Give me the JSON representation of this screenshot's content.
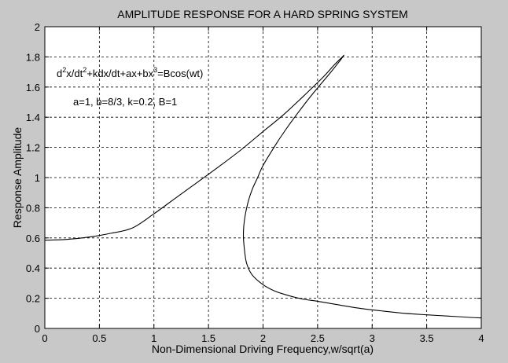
{
  "chart_data": {
    "type": "line",
    "title": "AMPLITUDE RESPONSE FOR A HARD SPRING SYSTEM",
    "xlabel": "Non-Dimensional Driving Frequency,w/sqrt(a)",
    "ylabel": "Response Amplitude",
    "xlim": [
      0,
      4
    ],
    "ylim": [
      0,
      2
    ],
    "xticks": [
      0,
      0.5,
      1,
      1.5,
      2,
      2.5,
      3,
      3.5,
      4
    ],
    "yticks": [
      0,
      0.2,
      0.4,
      0.6,
      0.8,
      1,
      1.2,
      1.4,
      1.6,
      1.8,
      2
    ],
    "xtick_labels": [
      "0",
      "0.5",
      "1",
      "1.5",
      "2",
      "2.5",
      "3",
      "3.5",
      "4"
    ],
    "ytick_labels": [
      "0",
      "0.2",
      "0.4",
      "0.6",
      "0.8",
      "1",
      "1.2",
      "1.4",
      "1.6",
      "1.8",
      "2"
    ],
    "grid": true,
    "annotations": {
      "equation": {
        "parts": [
          "d",
          "2",
          "x/dt",
          "2",
          "+kdx/dt+ax+bx",
          "3",
          "=Bcos(wt)"
        ]
      },
      "params": "a=1, b=8/3, k=0.2, B=1"
    },
    "series": [
      {
        "x": [
          0,
          0.2,
          0.4,
          0.6,
          0.8,
          1.0,
          1.2,
          1.4,
          1.6,
          1.8,
          2.0,
          2.2,
          2.4,
          2.55,
          2.65,
          2.72,
          2.74,
          2.7,
          2.6,
          2.5,
          2.4,
          2.3,
          2.2,
          2.1,
          2.0,
          1.95,
          1.9,
          1.86,
          1.83,
          1.82,
          1.83,
          1.85,
          1.9,
          2.0,
          2.1,
          2.2,
          2.3,
          2.4,
          2.5,
          2.7,
          2.9,
          3.1,
          3.3,
          3.5,
          3.7,
          3.9,
          4.0
        ],
        "y": [
          0.585,
          0.59,
          0.605,
          0.63,
          0.665,
          0.76,
          0.865,
          0.97,
          1.075,
          1.185,
          1.305,
          1.425,
          1.56,
          1.665,
          1.745,
          1.795,
          1.81,
          1.77,
          1.68,
          1.595,
          1.505,
          1.41,
          1.31,
          1.2,
          1.08,
          1.0,
          0.92,
          0.83,
          0.72,
          0.62,
          0.52,
          0.43,
          0.355,
          0.29,
          0.25,
          0.225,
          0.205,
          0.19,
          0.18,
          0.155,
          0.132,
          0.115,
          0.1,
          0.09,
          0.082,
          0.073,
          0.07
        ]
      }
    ]
  }
}
